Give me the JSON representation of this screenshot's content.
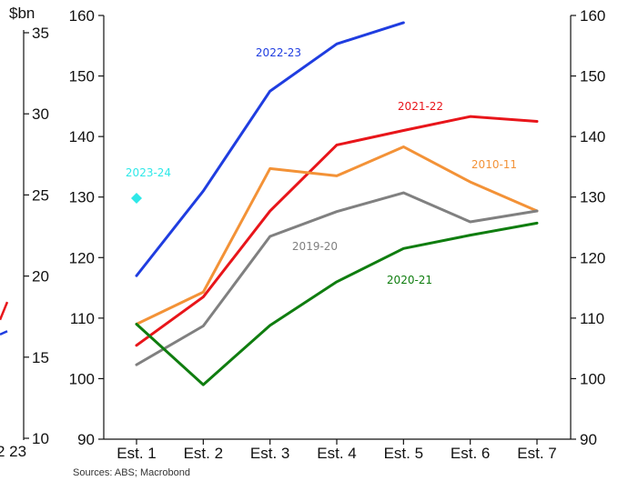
{
  "chart_data": [
    {
      "type": "line",
      "title": "",
      "xlabel": "",
      "ylabel": "",
      "categories": [
        "Est. 1",
        "Est. 2",
        "Est. 3",
        "Est. 4",
        "Est. 5",
        "Est. 6",
        "Est. 7"
      ],
      "ylim": [
        90,
        160
      ],
      "y_ticks": [
        "90",
        "100",
        "110",
        "120",
        "130",
        "140",
        "150",
        "160"
      ],
      "right_y_ticks": [
        "90",
        "100",
        "110",
        "120",
        "130",
        "140",
        "150",
        "160"
      ],
      "grid": false,
      "series": [
        {
          "name": "2022-23",
          "color": "#1f3de0",
          "values": [
            117,
            131,
            147.5,
            155.3,
            158.8,
            null,
            null
          ]
        },
        {
          "name": "2021-22",
          "color": "#e8151a",
          "values": [
            105.5,
            113.5,
            127.7,
            138.6,
            141,
            143.3,
            142.5
          ]
        },
        {
          "name": "2010-11",
          "color": "#f39237",
          "values": [
            109,
            114.3,
            134.7,
            133.5,
            138.3,
            132.5,
            127.7
          ]
        },
        {
          "name": "2019-20",
          "color": "#808080",
          "values": [
            102.3,
            108.7,
            123.5,
            127.6,
            130.7,
            125.9,
            127.7
          ]
        },
        {
          "name": "2020-21",
          "color": "#0f7d0f",
          "values": [
            109,
            99,
            108.8,
            116,
            121.5,
            123.7,
            125.7
          ]
        },
        {
          "name": "2023-24",
          "color": "#2ee8e8",
          "marker": "diamond",
          "values": [
            129.8,
            null,
            null,
            null,
            null,
            null,
            null
          ]
        }
      ]
    },
    {
      "type": "line",
      "partial": true,
      "unit_label": "$bn",
      "y_ticks": [
        "10",
        "15",
        "20",
        "25",
        "30",
        "35"
      ],
      "x_tick_text": "2 23",
      "ylim": [
        10,
        35
      ],
      "series": [
        {
          "color": "#e8151a",
          "values": [
            17.3,
            18.4
          ]
        },
        {
          "color": "#1f3de0",
          "values": [
            16.4,
            16.6
          ]
        }
      ]
    }
  ],
  "source_text": "Sources: ABS; Macrobond"
}
